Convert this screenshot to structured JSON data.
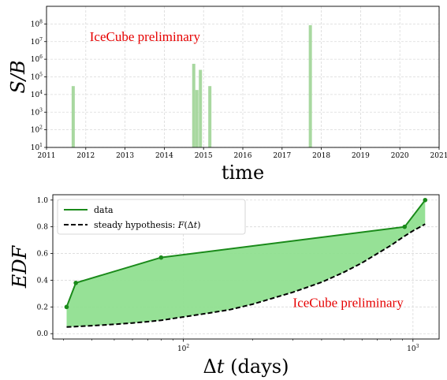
{
  "chart_data": [
    {
      "type": "bar",
      "title": "",
      "xlabel": "time",
      "ylabel": "S/B",
      "yscale": "log",
      "xlim": [
        2011,
        2021
      ],
      "ylim": [
        10,
        1000000000
      ],
      "grid": true,
      "xticks": [
        "2011",
        "2012",
        "2013",
        "2014",
        "2015",
        "2016",
        "2017",
        "2018",
        "2019",
        "2020",
        "2021"
      ],
      "yticks": [
        {
          "value": 10,
          "base": "10",
          "exp": "1"
        },
        {
          "value": 100,
          "base": "10",
          "exp": "2"
        },
        {
          "value": 1000,
          "base": "10",
          "exp": "3"
        },
        {
          "value": 10000,
          "base": "10",
          "exp": "4"
        },
        {
          "value": 100000,
          "base": "10",
          "exp": "5"
        },
        {
          "value": 1000000,
          "base": "10",
          "exp": "6"
        },
        {
          "value": 10000000,
          "base": "10",
          "exp": "7"
        },
        {
          "value": 100000000,
          "base": "10",
          "exp": "8"
        }
      ],
      "bar_color": "#a8d8a0",
      "bars": [
        {
          "x": 2011.68,
          "y": 30000
        },
        {
          "x": 2014.75,
          "y": 550000
        },
        {
          "x": 2014.83,
          "y": 18000
        },
        {
          "x": 2014.92,
          "y": 250000
        },
        {
          "x": 2015.16,
          "y": 30000
        },
        {
          "x": 2017.72,
          "y": 85000000
        }
      ],
      "annotation": "IceCube preliminary"
    },
    {
      "type": "line",
      "title": "",
      "xlabel_prefix": "Δ",
      "xlabel_var": "t",
      "xlabel_suffix": " (days)",
      "ylabel": "EDF",
      "xscale": "log",
      "xlim": [
        27,
        1300
      ],
      "ylim": [
        -0.04,
        1.04
      ],
      "grid": true,
      "xticks": [
        {
          "value": 100,
          "base": "10",
          "exp": "2"
        },
        {
          "value": 1000,
          "base": "10",
          "exp": "3"
        }
      ],
      "yticks": [
        "0.0",
        "0.2",
        "0.4",
        "0.6",
        "0.8",
        "1.0"
      ],
      "series": [
        {
          "name": "data",
          "color": "#1a8a1a",
          "style": "solid",
          "x": [
            31,
            34,
            80,
            920,
            1130
          ],
          "y": [
            0.2,
            0.38,
            0.57,
            0.8,
            1.0
          ]
        },
        {
          "name_text": "steady hypothesis: ",
          "name_func": "F",
          "name_arg_prefix": "(Δ",
          "name_arg_var": "t",
          "name_arg_suffix": ")",
          "color": "#000000",
          "style": "dashed",
          "x": [
            31,
            40,
            50,
            60,
            70,
            80,
            100,
            130,
            160,
            200,
            250,
            300,
            400,
            500,
            600,
            700,
            800,
            900,
            1000,
            1130
          ],
          "y": [
            0.05,
            0.06,
            0.07,
            0.08,
            0.09,
            0.1,
            0.125,
            0.155,
            0.18,
            0.22,
            0.27,
            0.31,
            0.385,
            0.46,
            0.53,
            0.6,
            0.66,
            0.72,
            0.77,
            0.82
          ]
        }
      ],
      "fill_color": "#90df90",
      "annotation": "IceCube preliminary"
    }
  ]
}
